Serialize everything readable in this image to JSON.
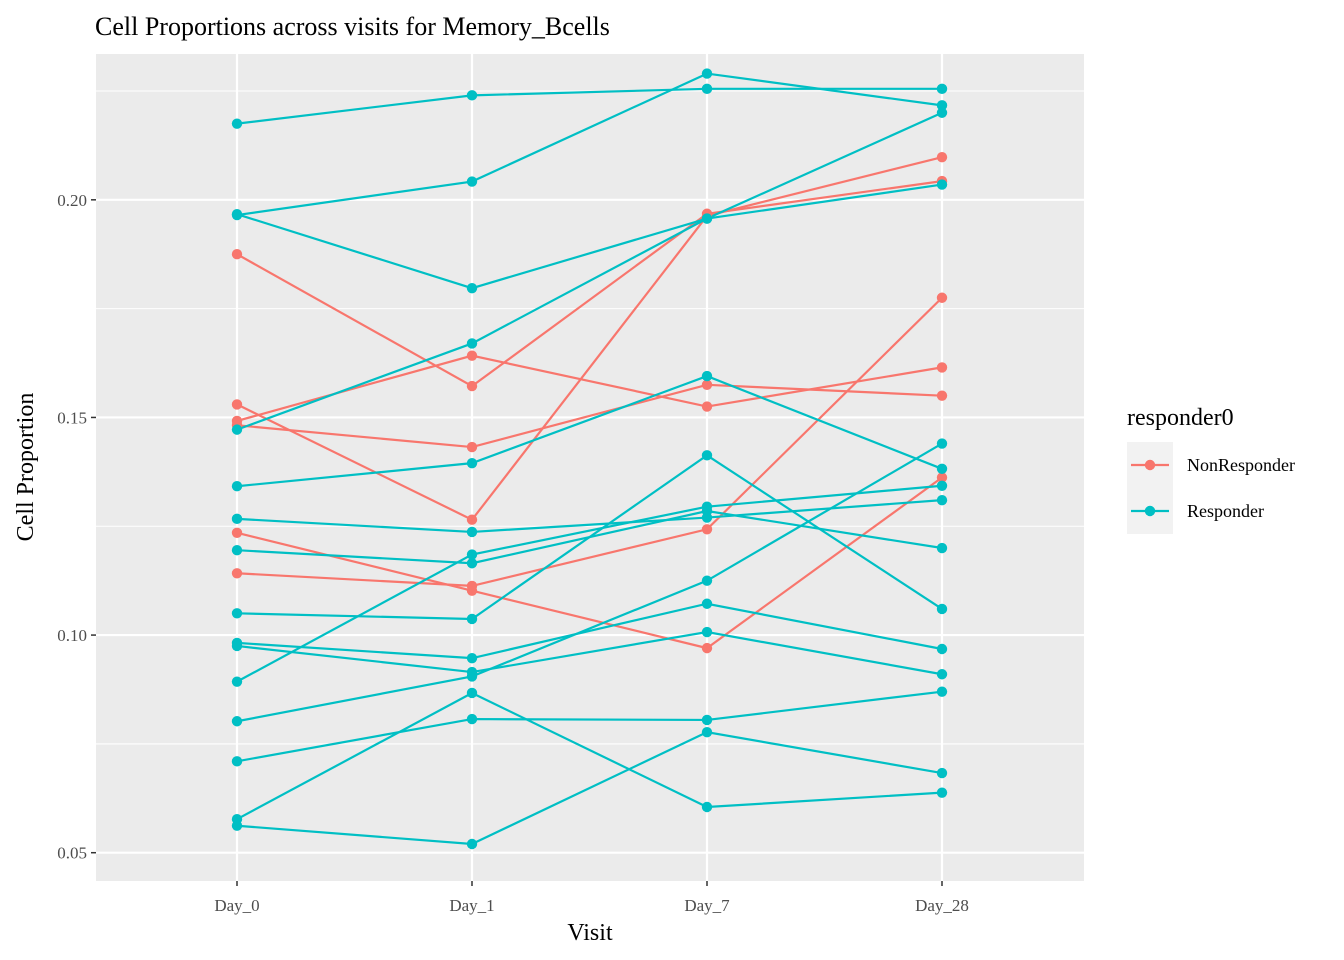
{
  "chart_data": {
    "type": "line",
    "title": "Cell Proportions across visits for Memory_Bcells",
    "xlabel": "Visit",
    "ylabel": "Cell Proportion",
    "categories": [
      "Day_0",
      "Day_1",
      "Day_7",
      "Day_28"
    ],
    "yticks": [
      0.05,
      0.1,
      0.15,
      0.2
    ],
    "ytick_labels": [
      "0.05",
      "0.10",
      "0.15",
      "0.20"
    ],
    "ylim": [
      0.0435,
      0.2335
    ],
    "grid": true,
    "legend": {
      "title": "responder0",
      "placement": "right",
      "entries": [
        {
          "name": "NonResponder",
          "color": "#F8766D"
        },
        {
          "name": "Responder",
          "color": "#00BFC4"
        }
      ]
    },
    "colors": {
      "NonResponder": "#F8766D",
      "Responder": "#00BFC4",
      "panel": "#EBEBEB",
      "grid": "#FFFFFF"
    },
    "series": [
      {
        "group": "NonResponder",
        "values": [
          0.1875,
          0.1572,
          0.1968,
          0.2043
        ]
      },
      {
        "group": "NonResponder",
        "values": [
          0.153,
          0.1265,
          0.1963,
          0.2098
        ]
      },
      {
        "group": "NonResponder",
        "values": [
          0.1492,
          0.1642,
          0.1525,
          0.1615
        ]
      },
      {
        "group": "NonResponder",
        "values": [
          0.1482,
          0.1432,
          0.1575,
          0.155
        ]
      },
      {
        "group": "NonResponder",
        "values": [
          0.1235,
          0.1102,
          0.097,
          0.1362
        ]
      },
      {
        "group": "NonResponder",
        "values": [
          0.1142,
          0.1113,
          0.1243,
          0.1775
        ]
      },
      {
        "group": "Responder",
        "values": [
          0.2175,
          0.224,
          0.2255,
          0.2255
        ]
      },
      {
        "group": "Responder",
        "values": [
          0.1965,
          0.2042,
          0.229,
          0.2217
        ]
      },
      {
        "group": "Responder",
        "values": [
          0.1967,
          0.1797,
          0.1957,
          0.2035
        ]
      },
      {
        "group": "Responder",
        "values": [
          0.1472,
          0.167,
          0.1957,
          0.22
        ]
      },
      {
        "group": "Responder",
        "values": [
          0.1342,
          0.1395,
          0.1595,
          0.1382
        ]
      },
      {
        "group": "Responder",
        "values": [
          0.1267,
          0.1237,
          0.127,
          0.131
        ]
      },
      {
        "group": "Responder",
        "values": [
          0.1195,
          0.1165,
          0.1285,
          0.12
        ]
      },
      {
        "group": "Responder",
        "values": [
          0.105,
          0.1037,
          0.1413,
          0.106
        ]
      },
      {
        "group": "Responder",
        "values": [
          0.0982,
          0.0947,
          0.1072,
          0.0968
        ]
      },
      {
        "group": "Responder",
        "values": [
          0.0975,
          0.0915,
          0.1007,
          0.091
        ]
      },
      {
        "group": "Responder",
        "values": [
          0.0893,
          0.1185,
          0.1295,
          0.1343
        ]
      },
      {
        "group": "Responder",
        "values": [
          0.0802,
          0.0905,
          0.1125,
          0.144
        ]
      },
      {
        "group": "Responder",
        "values": [
          0.071,
          0.0807,
          0.0805,
          0.087
        ]
      },
      {
        "group": "Responder",
        "values": [
          0.0577,
          0.0867,
          0.0605,
          0.0638
        ]
      },
      {
        "group": "Responder",
        "values": [
          0.0562,
          0.052,
          0.0777,
          0.0683
        ]
      }
    ]
  }
}
